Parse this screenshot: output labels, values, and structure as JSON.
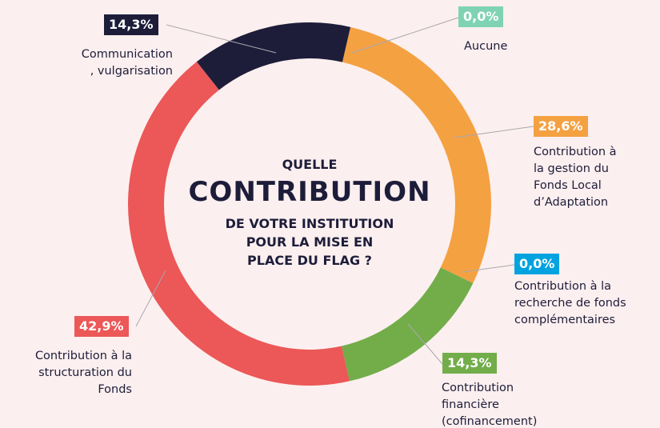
{
  "chart_data": {
    "type": "donut",
    "center_text": [
      "QUELLE",
      "CONTRIBUTION",
      "DE VOTRE INSTITUTION\nPOUR LA MISE EN\nPLACE DU FLAG ?"
    ],
    "categories": [
      "Aucune",
      "Contribution à\nla gestion du\nFonds Local\nd’Adaptation",
      "Contribution à la\nrecherche de fonds\ncomplémentaires",
      "Contribution\nfinancière\n(cofinancement)",
      "Contribution à la\nstructuration du\nFonds",
      "Communication\n, vulgarisation"
    ],
    "values": [
      0,
      28.6,
      0,
      14.3,
      42.9,
      14.3
    ],
    "value_labels": [
      "0,0%",
      "28,6%",
      "0,0%",
      "14,3%",
      "42,9%",
      "14,3%"
    ],
    "colors": [
      "#7fd3b4",
      "#f4a142",
      "#00a3e0",
      "#72ad4a",
      "#ec5757",
      "#1d1d3a"
    ]
  }
}
